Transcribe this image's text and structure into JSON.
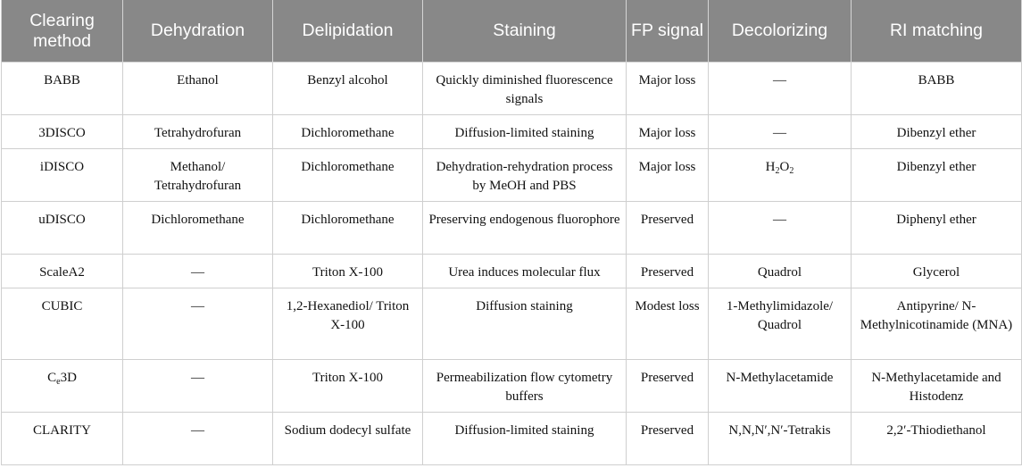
{
  "headers": [
    "Clearing method",
    "Dehydration",
    "Delipidation",
    "Staining",
    "FP signal",
    "Decolorizing",
    "RI matching"
  ],
  "rows": [
    {
      "method": "BABB",
      "method_sub": "",
      "method_after": "",
      "dehydration": "Ethanol",
      "delipidation": "Benzyl alcohol",
      "staining": "Quickly diminished fluorescence signals",
      "fp_signal": "Major loss",
      "decolorizing": "—",
      "decolorizing_sub": "",
      "decolorizing_after": "",
      "ri_matching": "BABB"
    },
    {
      "method": "3DISCO",
      "method_sub": "",
      "method_after": "",
      "dehydration": "Tetrahydrofuran",
      "delipidation": "Dichloromethane",
      "staining": "Diffusion-limited staining",
      "fp_signal": "Major loss",
      "decolorizing": "—",
      "decolorizing_sub": "",
      "decolorizing_after": "",
      "ri_matching": "Dibenzyl ether"
    },
    {
      "method": "iDISCO",
      "method_sub": "",
      "method_after": "",
      "dehydration": "Methanol/ Tetrahydrofuran",
      "delipidation": "Dichloromethane",
      "staining": "Dehydration-rehydration process by MeOH and PBS",
      "fp_signal": "Major loss",
      "decolorizing": "H",
      "decolorizing_sub": "2",
      "decolorizing_after": "O",
      "decolorizing_sub2": "2",
      "ri_matching": "Dibenzyl ether"
    },
    {
      "method": "uDISCO",
      "method_sub": "",
      "method_after": "",
      "dehydration": "Dichloromethane",
      "delipidation": "Dichloromethane",
      "staining": "Preserving endogenous fluorophore",
      "fp_signal": "Preserved",
      "decolorizing": "—",
      "decolorizing_sub": "",
      "decolorizing_after": "",
      "ri_matching": "Diphenyl ether"
    },
    {
      "method": "ScaleA2",
      "method_sub": "",
      "method_after": "",
      "dehydration": "—",
      "delipidation": "Triton X-100",
      "staining": "Urea induces molecular flux",
      "fp_signal": "Preserved",
      "decolorizing": "Quadrol",
      "decolorizing_sub": "",
      "decolorizing_after": "",
      "ri_matching": "Glycerol"
    },
    {
      "method": "CUBIC",
      "method_sub": "",
      "method_after": "",
      "dehydration": "—",
      "delipidation": "1,2-Hexanediol/ Triton X-100",
      "staining": "Diffusion staining",
      "fp_signal": "Modest loss",
      "decolorizing": "1-Methylimidazole/ Quadrol",
      "decolorizing_sub": "",
      "decolorizing_after": "",
      "ri_matching": "Antipyrine/ N-Methylnicotinamide (MNA)"
    },
    {
      "method": "C",
      "method_sub": "e",
      "method_after": "3D",
      "dehydration": "—",
      "delipidation": "Triton X-100",
      "staining": "Permeabilization flow cytometry buffers",
      "fp_signal": "Preserved",
      "decolorizing": "N-Methylacetamide",
      "decolorizing_sub": "",
      "decolorizing_after": "",
      "ri_matching": "N-Methylacetamide and Histodenz"
    },
    {
      "method": "CLARITY",
      "method_sub": "",
      "method_after": "",
      "dehydration": "—",
      "delipidation": "Sodium dodecyl sulfate",
      "staining": "Diffusion-limited staining",
      "fp_signal": "Preserved",
      "decolorizing": "N,N,N′,N′-Tetrakis",
      "decolorizing_sub": "",
      "decolorizing_after": "",
      "ri_matching": "2,2′-Thiodiethanol"
    }
  ]
}
